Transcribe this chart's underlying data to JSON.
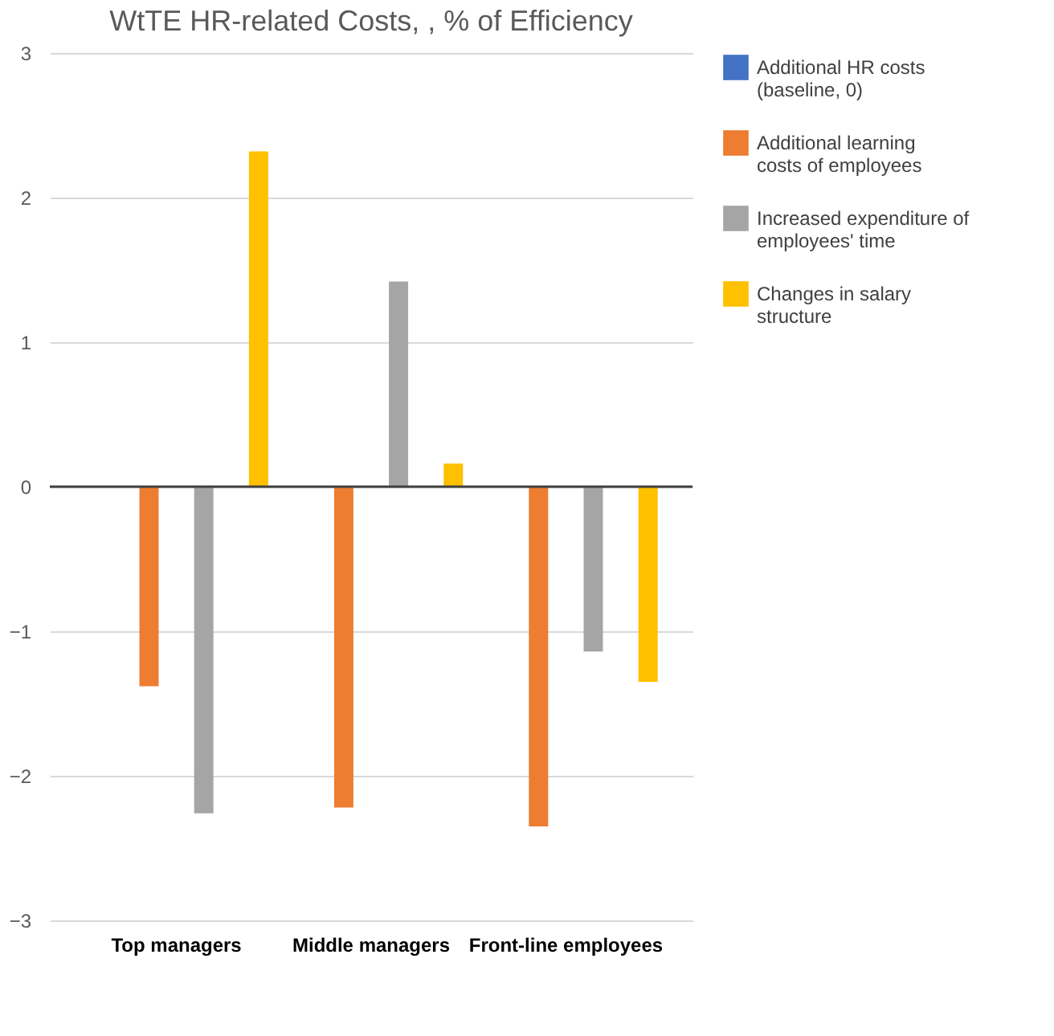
{
  "chart_data": {
    "type": "bar",
    "title": "WtTE HR-related Costs, , % of Efficiency",
    "categories": [
      "Top managers",
      "Middle managers",
      "Front-line employees"
    ],
    "series": [
      {
        "name": "Additional HR costs (baseline, 0)",
        "color": "#4472c4",
        "values": [
          0,
          0,
          0
        ]
      },
      {
        "name": "Additional learning costs of employees",
        "color": "#ed7d31",
        "values": [
          -1.38,
          -2.22,
          -2.35
        ]
      },
      {
        "name": "Increased expenditure of employees' time",
        "color": "#a5a5a5",
        "values": [
          -2.26,
          1.42,
          -1.14
        ]
      },
      {
        "name": "Changes in salary structure",
        "color": "#ffc000",
        "values": [
          2.32,
          0.16,
          -1.35
        ]
      }
    ],
    "ylim": [
      -3,
      3
    ],
    "yticks": [
      -3,
      -2,
      -1,
      0,
      1,
      2,
      3
    ],
    "grid": "y",
    "legend": "right",
    "ref_lines": [
      {
        "axis": "y",
        "value": 0,
        "color": "#404040"
      }
    ]
  }
}
